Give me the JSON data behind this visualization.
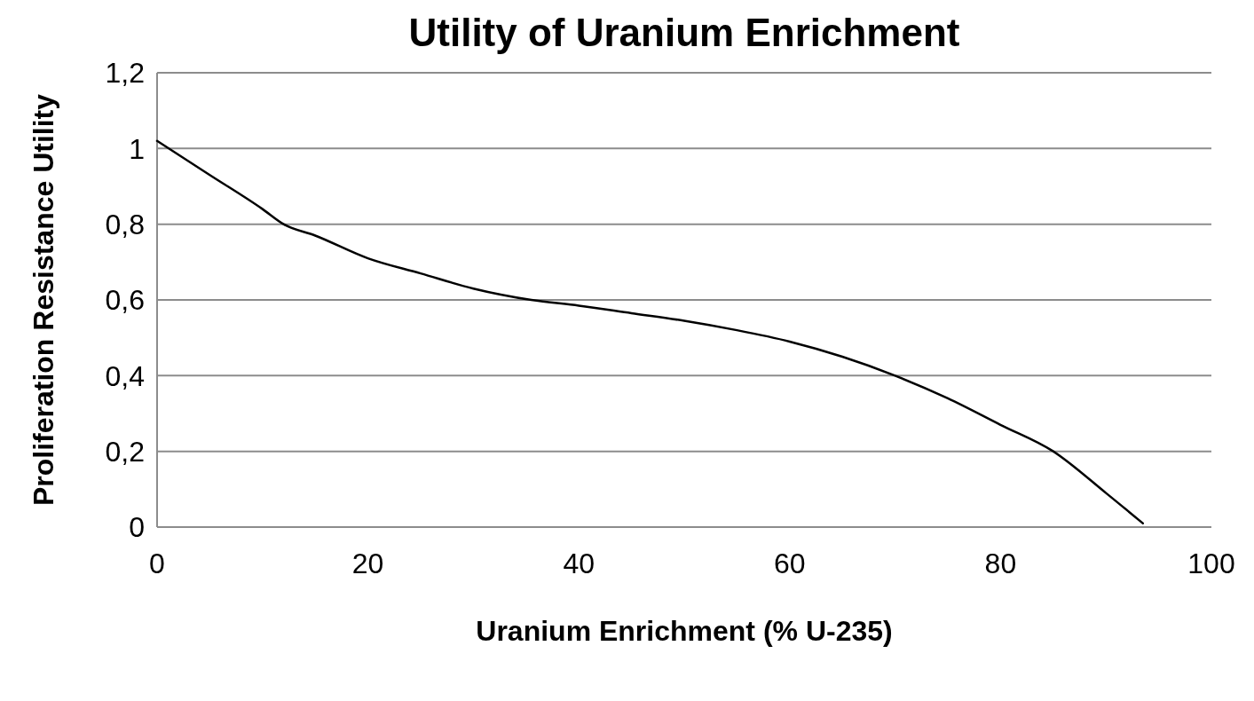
{
  "chart_data": {
    "type": "line",
    "title": "Utility of Uranium Enrichment",
    "xlabel": "Uranium Enrichment (% U-235)",
    "ylabel": "Proliferation Resistance Utility",
    "x": [
      0,
      5,
      10,
      12,
      15,
      20,
      25,
      30,
      35.5,
      40,
      45,
      50,
      55,
      60,
      65,
      70,
      75,
      80,
      85,
      90,
      93.5
    ],
    "series": [
      {
        "color": "#000000",
        "values": [
          1.02,
          0.93,
          0.84,
          0.8,
          0.77,
          0.71,
          0.67,
          0.63,
          0.6,
          0.585,
          0.565,
          0.545,
          0.52,
          0.49,
          0.45,
          0.4,
          0.34,
          0.27,
          0.2,
          0.09,
          0.01
        ]
      }
    ],
    "xlim": [
      0,
      100
    ],
    "xticks": [
      0,
      20,
      40,
      60,
      80,
      100
    ],
    "ylim": [
      0,
      1.2
    ],
    "yticks": [
      0,
      {
        "value": 0.2,
        "label": "0,2"
      },
      {
        "value": 0.4,
        "label": "0,4"
      },
      {
        "value": 0.6,
        "label": "0,6"
      },
      {
        "value": 0.8,
        "label": "0,8"
      },
      1,
      {
        "value": 1.2,
        "label": "1,2"
      }
    ],
    "grid": "y",
    "marker": "none",
    "line_style": "solid"
  }
}
